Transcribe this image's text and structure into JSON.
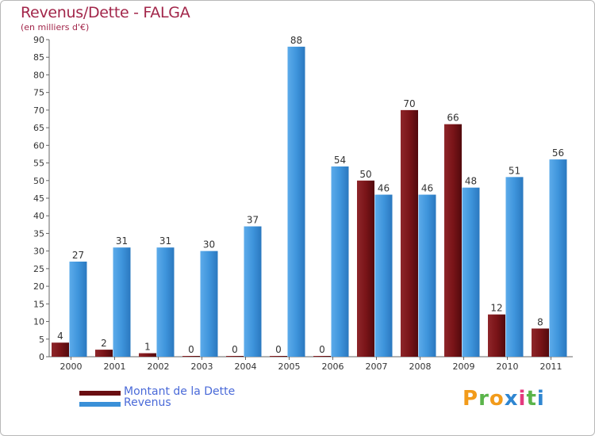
{
  "title": "Revenus/Dette - FALGA",
  "subtitle": "(en milliers d'€)",
  "logo": {
    "letters": [
      "P",
      "r",
      "o",
      "x",
      "i",
      "t",
      "i"
    ],
    "colors": [
      "#f29b1a",
      "#5ab44a",
      "#f29b1a",
      "#2f86d1",
      "#e43a7f",
      "#5ab44a",
      "#2f86d1"
    ]
  },
  "chart_data": {
    "type": "bar",
    "categories": [
      "2000",
      "2001",
      "2002",
      "2003",
      "2004",
      "2005",
      "2006",
      "2007",
      "2008",
      "2009",
      "2010",
      "2011"
    ],
    "series": [
      {
        "name": "Montant de la Dette",
        "color": "#7a1418",
        "values": [
          4,
          2,
          1,
          0,
          0,
          0,
          0,
          50,
          70,
          66,
          12,
          8
        ]
      },
      {
        "name": "Revenus",
        "color": "#3a90d8",
        "values": [
          27,
          31,
          31,
          30,
          37,
          88,
          54,
          46,
          46,
          48,
          51,
          56
        ]
      }
    ],
    "ylim": [
      0,
      90
    ],
    "yticks": [
      0,
      5,
      10,
      15,
      20,
      25,
      30,
      35,
      40,
      45,
      50,
      55,
      60,
      65,
      70,
      75,
      80,
      85,
      90
    ],
    "grid": false,
    "legend_position": "bottom-left"
  }
}
